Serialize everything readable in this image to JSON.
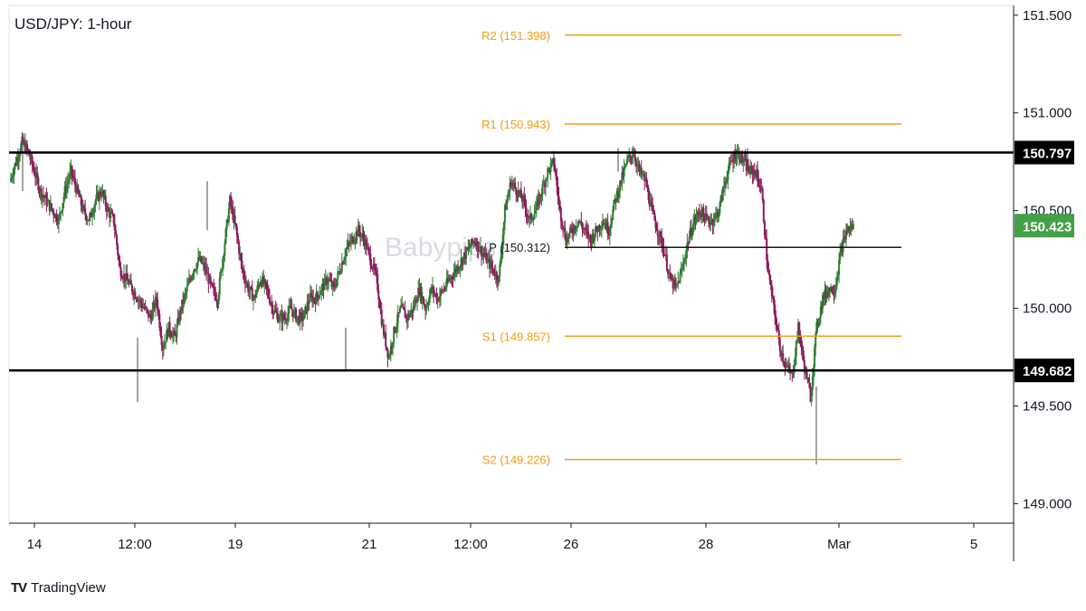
{
  "title": "USD/JPY: 1-hour",
  "watermark": "Babypips",
  "brand": {
    "logo": "TV",
    "name": "TradingView"
  },
  "colors": {
    "up": "#26a69a",
    "up_body": "#2e7d32",
    "down": "#8b1a5a",
    "pivot_orange": "#f39c12",
    "pivot_black": "#131722",
    "axis": "#131722",
    "current_price_bg": "#43a047",
    "key_level_bg": "#000000"
  },
  "chart_data": {
    "type": "candlestick",
    "title": "USD/JPY: 1-hour",
    "y_axis": {
      "min": 148.9,
      "max": 151.55,
      "ticks": [
        "151.500",
        "151.000",
        "150.500",
        "150.000",
        "149.500",
        "149.000"
      ]
    },
    "x_axis": {
      "ticks": [
        "14",
        "12:00",
        "19",
        "21",
        "12:00",
        "26",
        "28",
        "Mar",
        "5"
      ]
    },
    "horizontal_levels": [
      {
        "name": "R2",
        "label": "R2 (151.398)",
        "value": 151.398,
        "color": "orange"
      },
      {
        "name": "R1",
        "label": "R1 (150.943)",
        "value": 150.943,
        "color": "orange"
      },
      {
        "name": "P",
        "label": "P (150.312)",
        "value": 150.312,
        "color": "black"
      },
      {
        "name": "S1",
        "label": "S1 (149.857)",
        "value": 149.857,
        "color": "orange"
      },
      {
        "name": "S2",
        "label": "S2 (149.226)",
        "value": 149.226,
        "color": "orange"
      }
    ],
    "range_lines": [
      {
        "label": "150.797",
        "value": 150.797
      },
      {
        "label": "149.682",
        "value": 149.682
      }
    ],
    "current_price": {
      "label": "150.423",
      "value": 150.423
    },
    "price_path": [
      150.65,
      150.75,
      150.85,
      150.8,
      150.7,
      150.6,
      150.55,
      150.5,
      150.45,
      150.6,
      150.7,
      150.6,
      150.5,
      150.45,
      150.55,
      150.6,
      150.5,
      150.45,
      150.2,
      150.15,
      150.1,
      150.05,
      150.0,
      149.95,
      150.05,
      149.8,
      149.9,
      149.85,
      150.0,
      150.1,
      150.2,
      150.25,
      150.2,
      150.1,
      150.05,
      150.3,
      150.55,
      150.4,
      150.2,
      150.1,
      150.05,
      150.15,
      150.1,
      150.0,
      149.95,
      149.95,
      150.0,
      149.95,
      149.95,
      150.05,
      150.05,
      150.1,
      150.15,
      150.1,
      150.2,
      150.3,
      150.35,
      150.4,
      150.35,
      150.25,
      150.15,
      149.9,
      149.75,
      149.9,
      150.0,
      149.95,
      150.0,
      150.1,
      150.0,
      150.1,
      150.05,
      150.1,
      150.15,
      150.2,
      150.25,
      150.3,
      150.35,
      150.3,
      150.25,
      150.2,
      150.15,
      150.5,
      150.65,
      150.6,
      150.55,
      150.45,
      150.5,
      150.6,
      150.7,
      150.75,
      150.5,
      150.35,
      150.4,
      150.45,
      150.4,
      150.35,
      150.4,
      150.45,
      150.4,
      150.55,
      150.65,
      150.75,
      150.8,
      150.7,
      150.65,
      150.5,
      150.4,
      150.3,
      150.15,
      150.1,
      150.2,
      150.35,
      150.45,
      150.5,
      150.45,
      150.45,
      150.5,
      150.65,
      150.75,
      150.8,
      150.75,
      150.7,
      150.7,
      150.6,
      150.2,
      150.0,
      149.8,
      149.7,
      149.65,
      149.9,
      149.7,
      149.55,
      149.9,
      150.05,
      150.1,
      150.1,
      150.3,
      150.4,
      150.42
    ]
  }
}
